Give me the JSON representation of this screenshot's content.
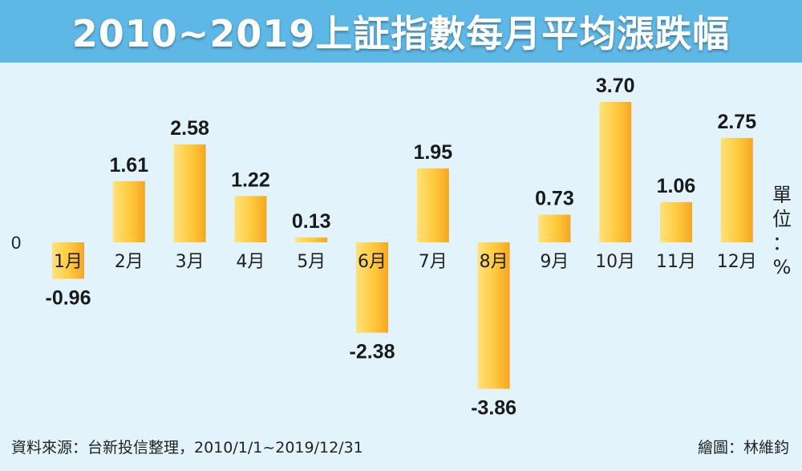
{
  "title": "2010~2019上証指數每月平均漲跌幅",
  "unit": {
    "chars": [
      "單",
      "位",
      "：",
      "%"
    ]
  },
  "footer": {
    "source": "資料來源：台新投信整理，2010/1/1~2019/12/31",
    "credit": "繪圖：林維鈞"
  },
  "colors": {
    "title_bg": "#5eb8e6",
    "background": "#e3f3fb",
    "bar_light": "#ffe27a",
    "bar_dark": "#f5a623"
  },
  "chart_data": {
    "type": "bar",
    "title": "2010~2019上証指數每月平均漲跌幅",
    "xlabel": "",
    "ylabel": "單位：%",
    "categories": [
      "1月",
      "2月",
      "3月",
      "4月",
      "5月",
      "6月",
      "7月",
      "8月",
      "9月",
      "10月",
      "11月",
      "12月"
    ],
    "values": [
      -0.96,
      1.61,
      2.58,
      1.22,
      0.13,
      -2.38,
      1.95,
      -3.86,
      0.73,
      3.7,
      1.06,
      2.75
    ],
    "value_labels": [
      "-0.96",
      "1.61",
      "2.58",
      "1.22",
      "0.13",
      "-2.38",
      "1.95",
      "-3.86",
      "0.73",
      "3.70",
      "1.06",
      "2.75"
    ],
    "y_ticks": [
      "0"
    ],
    "ylim": [
      -4.5,
      4.0
    ],
    "grid": false,
    "legend": "none"
  }
}
